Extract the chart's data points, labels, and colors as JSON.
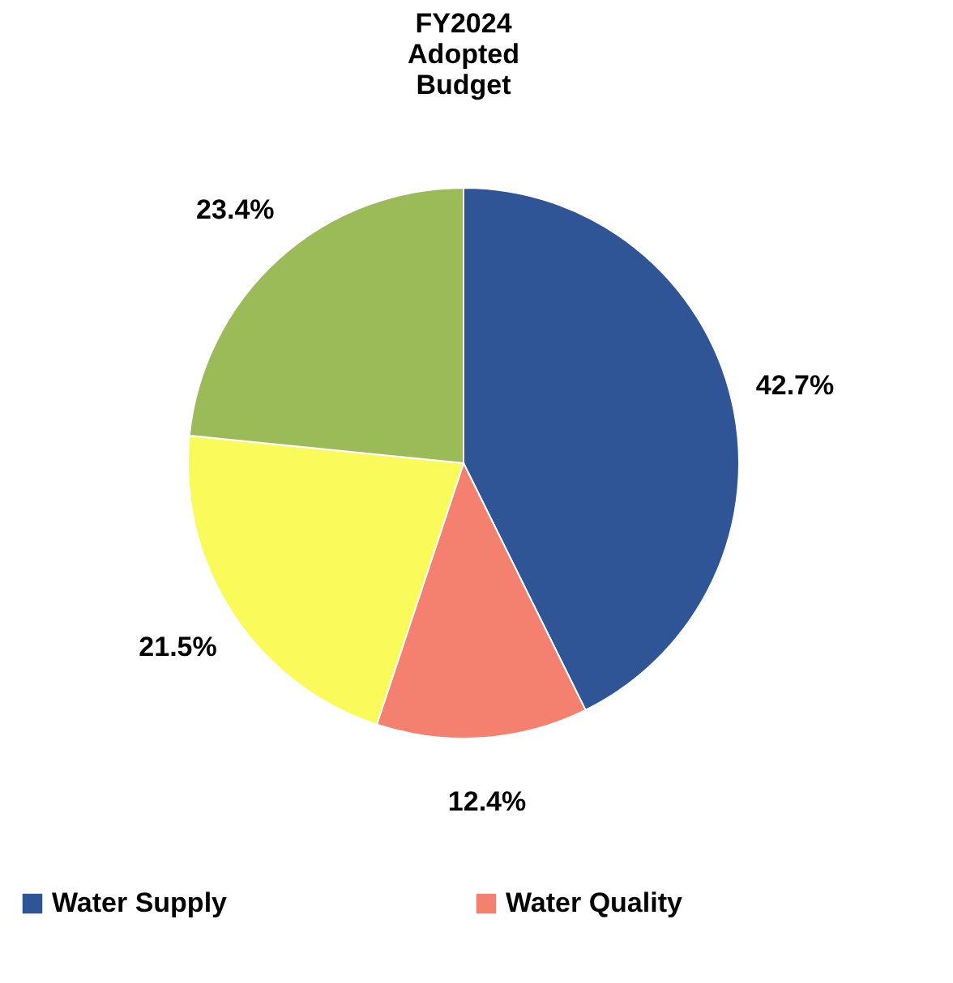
{
  "chart_data": {
    "type": "pie",
    "title": "FY2024 Adopted Budget",
    "categories": [
      "Water Supply",
      "Water Quality",
      null,
      null
    ],
    "values": [
      42.7,
      12.4,
      21.5,
      23.4
    ],
    "value_labels": [
      "42.7%",
      "12.4%",
      "21.5%",
      "23.4%"
    ],
    "colors": [
      "#2f5597",
      "#f4806f",
      "#fafa5a",
      "#9bbb59"
    ],
    "legend": "bottom"
  }
}
